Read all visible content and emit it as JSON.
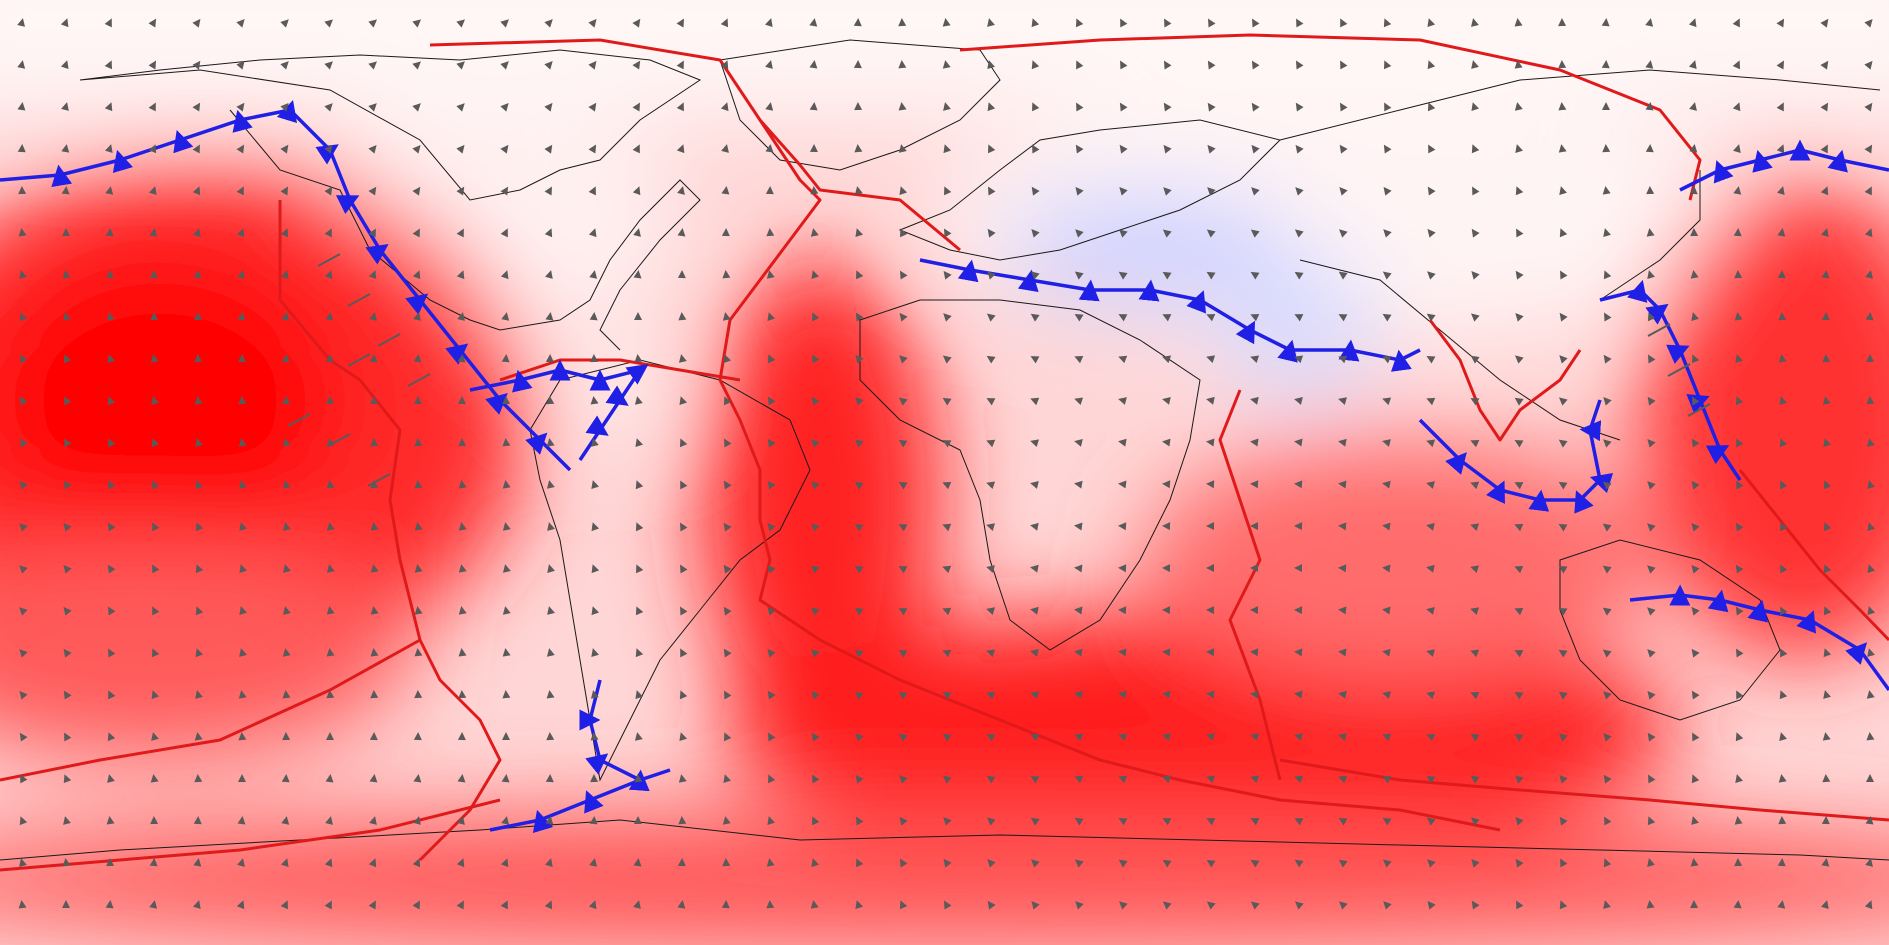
{
  "map": {
    "kind": "global plate-tectonic velocity map (equirectangular projection)",
    "colors": {
      "ocean_field_max": "#ff0000",
      "ocean_field_mid": "#ff6a6a",
      "ocean_field_low": "#ffc4c4",
      "field_neutral": "#fff4f4",
      "field_cool": "#c9ccff",
      "plate_boundary": "#e01a1a",
      "subduction_zone": "#1f1fe6",
      "coastline": "#1a1a1a",
      "velocity_arrow": "#5a5a5a"
    },
    "icons": {
      "velocity_marker": "arrow-triangle-icon",
      "subduction_tooth": "subduction-triangle-icon"
    },
    "layers": [
      "heat-field",
      "coastlines",
      "plate-boundaries",
      "subduction-zones",
      "velocity-arrows"
    ]
  }
}
